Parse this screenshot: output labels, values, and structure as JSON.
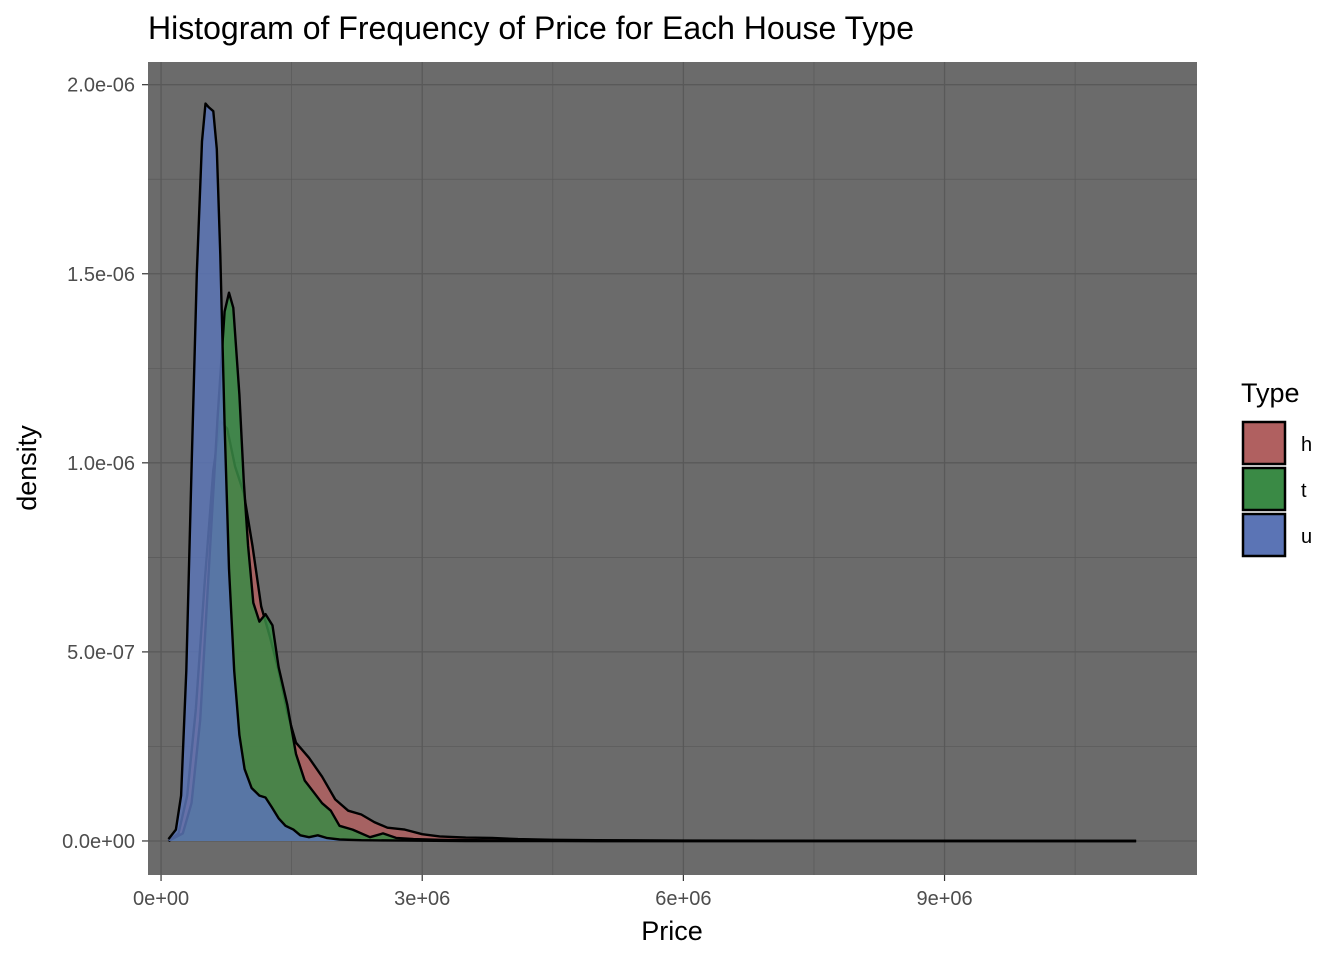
{
  "chart_data": {
    "type": "area",
    "title": "Histogram of Frequency of Price for Each House Type",
    "xlabel": "Price",
    "ylabel": "density",
    "xlim": [
      -150000,
      11900000
    ],
    "ylim": [
      -9e-08,
      2.06e-06
    ],
    "x_ticks": [
      {
        "value": 0,
        "label": "0e+00"
      },
      {
        "value": 3000000,
        "label": "3e+06"
      },
      {
        "value": 6000000,
        "label": "6e+06"
      },
      {
        "value": 9000000,
        "label": "9e+06"
      }
    ],
    "y_ticks": [
      {
        "value": 0,
        "label": "0.0e+00"
      },
      {
        "value": 5e-07,
        "label": "5.0e-07"
      },
      {
        "value": 1e-06,
        "label": "1.0e-06"
      },
      {
        "value": 1.5e-06,
        "label": "1.5e-06"
      },
      {
        "value": 2e-06,
        "label": "2.0e-06"
      }
    ],
    "grid": true,
    "legend": {
      "title": "Type",
      "position": "right"
    },
    "series": [
      {
        "name": "h",
        "color": "#b06060",
        "points": [
          [
            85000,
            0
          ],
          [
            200000,
            2e-08
          ],
          [
            300000,
            1.2e-07
          ],
          [
            400000,
            3.5e-07
          ],
          [
            500000,
            6.8e-07
          ],
          [
            600000,
            9.8e-07
          ],
          [
            680000,
            1.11e-06
          ],
          [
            760000,
            1.09e-06
          ],
          [
            850000,
            9.9e-07
          ],
          [
            950000,
            9.2e-07
          ],
          [
            1050000,
            7.8e-07
          ],
          [
            1150000,
            6.2e-07
          ],
          [
            1250000,
            5.4e-07
          ],
          [
            1350000,
            4.5e-07
          ],
          [
            1450000,
            3.4e-07
          ],
          [
            1550000,
            2.6e-07
          ],
          [
            1700000,
            2.2e-07
          ],
          [
            1850000,
            1.7e-07
          ],
          [
            2000000,
            1.1e-07
          ],
          [
            2150000,
            8e-08
          ],
          [
            2300000,
            7e-08
          ],
          [
            2450000,
            5e-08
          ],
          [
            2600000,
            3.5e-08
          ],
          [
            2800000,
            3e-08
          ],
          [
            3000000,
            1.8e-08
          ],
          [
            3200000,
            1.2e-08
          ],
          [
            3500000,
            9e-09
          ],
          [
            3800000,
            8e-09
          ],
          [
            4100000,
            5e-09
          ],
          [
            4500000,
            3e-09
          ],
          [
            5000000,
            2e-09
          ],
          [
            6000000,
            1e-09
          ],
          [
            8000000,
            5e-10
          ],
          [
            11200000,
            0
          ]
        ]
      },
      {
        "name": "t",
        "color": "#3a8a45",
        "points": [
          [
            85000,
            0
          ],
          [
            250000,
            2e-08
          ],
          [
            350000,
            1e-07
          ],
          [
            450000,
            3.2e-07
          ],
          [
            550000,
            7.2e-07
          ],
          [
            650000,
            1.12e-06
          ],
          [
            730000,
            1.4e-06
          ],
          [
            780000,
            1.45e-06
          ],
          [
            830000,
            1.41e-06
          ],
          [
            900000,
            1.18e-06
          ],
          [
            950000,
            9.5e-07
          ],
          [
            1000000,
            7.8e-07
          ],
          [
            1060000,
            6.3e-07
          ],
          [
            1130000,
            5.8e-07
          ],
          [
            1200000,
            6e-07
          ],
          [
            1280000,
            5.7e-07
          ],
          [
            1350000,
            4.6e-07
          ],
          [
            1450000,
            3.6e-07
          ],
          [
            1550000,
            2.3e-07
          ],
          [
            1650000,
            1.6e-07
          ],
          [
            1750000,
            1.3e-07
          ],
          [
            1850000,
            1e-07
          ],
          [
            1950000,
            8e-08
          ],
          [
            2050000,
            4e-08
          ],
          [
            2200000,
            3e-08
          ],
          [
            2400000,
            1e-08
          ],
          [
            2550000,
            2e-08
          ],
          [
            2700000,
            8e-09
          ],
          [
            2900000,
            5e-09
          ],
          [
            3200000,
            3e-09
          ],
          [
            3600000,
            2e-09
          ],
          [
            4200000,
            1e-09
          ],
          [
            5000000,
            0
          ],
          [
            11200000,
            0
          ]
        ]
      },
      {
        "name": "u",
        "color": "#5b74b5",
        "points": [
          [
            85000,
            5e-09
          ],
          [
            170000,
            3e-08
          ],
          [
            230000,
            1.2e-07
          ],
          [
            290000,
            4.5e-07
          ],
          [
            350000,
            9.8e-07
          ],
          [
            410000,
            1.5e-06
          ],
          [
            470000,
            1.85e-06
          ],
          [
            510000,
            1.95e-06
          ],
          [
            550000,
            1.94e-06
          ],
          [
            600000,
            1.93e-06
          ],
          [
            640000,
            1.83e-06
          ],
          [
            680000,
            1.55e-06
          ],
          [
            730000,
            1.1e-06
          ],
          [
            780000,
            7.2e-07
          ],
          [
            840000,
            4.5e-07
          ],
          [
            900000,
            2.8e-07
          ],
          [
            960000,
            1.9e-07
          ],
          [
            1040000,
            1.4e-07
          ],
          [
            1130000,
            1.2e-07
          ],
          [
            1200000,
            1.15e-07
          ],
          [
            1270000,
            9e-08
          ],
          [
            1350000,
            6e-08
          ],
          [
            1430000,
            4e-08
          ],
          [
            1520000,
            3e-08
          ],
          [
            1600000,
            1.5e-08
          ],
          [
            1700000,
            1e-08
          ],
          [
            1800000,
            1.5e-08
          ],
          [
            1900000,
            8e-09
          ],
          [
            2050000,
            4e-09
          ],
          [
            2300000,
            2e-09
          ],
          [
            2800000,
            1e-09
          ],
          [
            3500000,
            0
          ],
          [
            11200000,
            0
          ]
        ]
      }
    ]
  }
}
